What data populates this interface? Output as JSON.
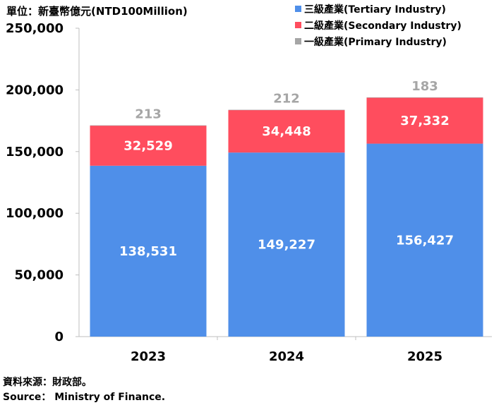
{
  "unit_label": "單位：新臺幣億元(NTD100Million)",
  "source": {
    "line1": "資料來源：財政部。",
    "line2": "Source： Ministry of Finance."
  },
  "chart_data": {
    "type": "bar",
    "stacked": true,
    "categories": [
      "2023",
      "2024",
      "2025"
    ],
    "series": [
      {
        "name": "三級產業(Tertiary Industry)",
        "color": "#4f8fe9",
        "label_color": "#ffffff",
        "values": [
          138531,
          149227,
          156427
        ]
      },
      {
        "name": "二級產業(Secondary Industry)",
        "color": "#ff4d5e",
        "label_color": "#ffffff",
        "values": [
          32529,
          34448,
          37332
        ]
      },
      {
        "name": "一級產業(Primary Industry)",
        "color": "#a6a6a6",
        "label_color": "#a6a6a6",
        "values": [
          213,
          212,
          183
        ]
      }
    ],
    "yticks": [
      "0",
      "50,000",
      "100,000",
      "150,000",
      "200,000",
      "250,000"
    ],
    "ylim": [
      0,
      250000
    ],
    "grid": false,
    "legend_position": "top-right"
  }
}
